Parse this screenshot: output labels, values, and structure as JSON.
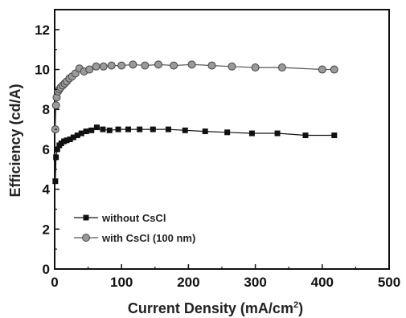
{
  "chart_data": {
    "type": "line",
    "xlabel": "Current Density (mA/cm2)",
    "xlabel_main": "Current Density (mA/cm",
    "xlabel_sup": "2",
    "xlabel_end": ")",
    "ylabel": "Efficiency (cd/A)",
    "xlim": [
      0,
      500
    ],
    "ylim": [
      0,
      13
    ],
    "xticks": [
      0,
      100,
      200,
      300,
      400,
      500
    ],
    "yticks": [
      0,
      2,
      4,
      6,
      8,
      10,
      12
    ],
    "grid": false,
    "legend_position": "bottom-left",
    "series": [
      {
        "name": "without CsCl",
        "marker": "square",
        "color": "#111111",
        "x": [
          1,
          2,
          4,
          7,
          10,
          14,
          18,
          23,
          28,
          34,
          40,
          47,
          55,
          63,
          72,
          82,
          95,
          110,
          127,
          147,
          170,
          195,
          225,
          258,
          295,
          333,
          375,
          418
        ],
        "y": [
          4.4,
          5.6,
          6.0,
          6.2,
          6.3,
          6.4,
          6.45,
          6.5,
          6.6,
          6.7,
          6.8,
          6.9,
          6.95,
          7.1,
          7.0,
          6.95,
          7.0,
          7.0,
          7.0,
          7.0,
          7.0,
          6.95,
          6.9,
          6.85,
          6.8,
          6.8,
          6.7,
          6.7
        ]
      },
      {
        "name": "with CsCl (100 nm)",
        "marker": "circle",
        "color": "#8a8a8a",
        "x": [
          1,
          2,
          3,
          5,
          7,
          9,
          12,
          15,
          18,
          22,
          26,
          31,
          37,
          44,
          52,
          62,
          73,
          85,
          100,
          117,
          135,
          155,
          178,
          205,
          235,
          265,
          300,
          340,
          400,
          418
        ],
        "y": [
          7.0,
          8.2,
          8.6,
          8.9,
          9.0,
          9.1,
          9.2,
          9.3,
          9.4,
          9.55,
          9.65,
          9.8,
          10.05,
          9.9,
          10.0,
          10.15,
          10.15,
          10.2,
          10.2,
          10.25,
          10.2,
          10.25,
          10.2,
          10.25,
          10.2,
          10.15,
          10.1,
          10.1,
          10.0,
          10.0
        ]
      }
    ]
  }
}
